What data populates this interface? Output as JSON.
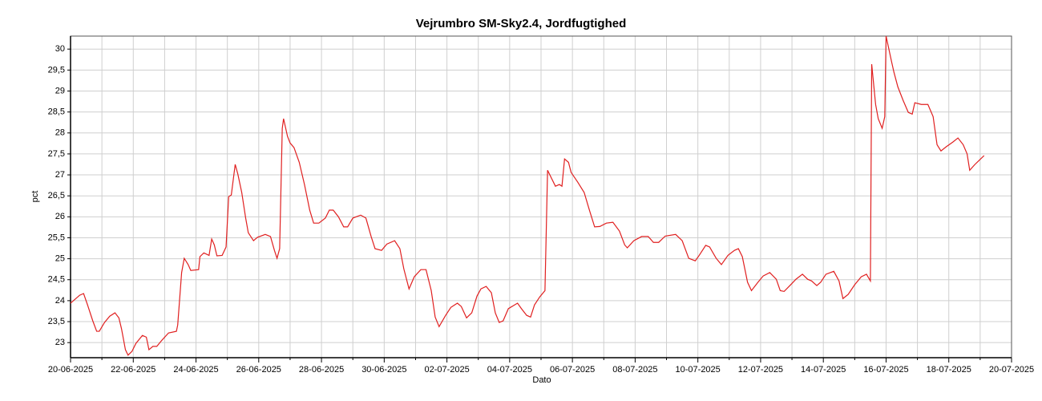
{
  "chart_data": {
    "type": "line",
    "title": "Vejrumbro SM-Sky2.4, Jordfugtighed",
    "x_label": "Dato",
    "y_label": "pct",
    "color": "#e02020",
    "grid": true,
    "minor_grid": true,
    "xlim": [
      "2025-06-20T00:00",
      "2025-07-20T00:00"
    ],
    "ylim": [
      22.64,
      30.31
    ],
    "xticks": [
      {
        "value": "2025-06-20T00:00",
        "label": "20-06-2025"
      },
      {
        "value": "2025-06-22T00:00",
        "label": "22-06-2025"
      },
      {
        "value": "2025-06-24T00:00",
        "label": "24-06-2025"
      },
      {
        "value": "2025-06-26T00:00",
        "label": "26-06-2025"
      },
      {
        "value": "2025-06-28T00:00",
        "label": "28-06-2025"
      },
      {
        "value": "2025-06-30T00:00",
        "label": "30-06-2025"
      },
      {
        "value": "2025-07-02T00:00",
        "label": "02-07-2025"
      },
      {
        "value": "2025-07-04T00:00",
        "label": "04-07-2025"
      },
      {
        "value": "2025-07-06T00:00",
        "label": "06-07-2025"
      },
      {
        "value": "2025-07-08T00:00",
        "label": "08-07-2025"
      },
      {
        "value": "2025-07-10T00:00",
        "label": "10-07-2025"
      },
      {
        "value": "2025-07-12T00:00",
        "label": "12-07-2025"
      },
      {
        "value": "2025-07-14T00:00",
        "label": "14-07-2025"
      },
      {
        "value": "2025-07-16T00:00",
        "label": "16-07-2025"
      },
      {
        "value": "2025-07-18T00:00",
        "label": "18-07-2025"
      },
      {
        "value": "2025-07-20T00:00",
        "label": "20-07-2025"
      }
    ],
    "yticks": [
      23,
      {
        "value": 23.5,
        "label": "23,5"
      },
      24,
      {
        "value": 24.5,
        "label": "24,5"
      },
      25,
      {
        "value": 25.5,
        "label": "25,5"
      },
      26,
      {
        "value": 26.5,
        "label": "26,5"
      },
      27,
      {
        "value": 27.5,
        "label": "27,5"
      },
      28,
      {
        "value": 28.5,
        "label": "28,5"
      },
      29,
      {
        "value": 29.5,
        "label": "29,5"
      },
      30
    ],
    "x": [
      "2025-06-20T00:00",
      "2025-06-20T07:00",
      "2025-06-20T10:00",
      "2025-06-20T13:00",
      "2025-06-20T17:00",
      "2025-06-20T20:00",
      "2025-06-20T22:00",
      "2025-06-21T02:00",
      "2025-06-21T06:00",
      "2025-06-21T10:00",
      "2025-06-21T13:00",
      "2025-06-21T15:00",
      "2025-06-21T18:00",
      "2025-06-21T20:00",
      "2025-06-21T23:00",
      "2025-06-22T02:00",
      "2025-06-22T07:00",
      "2025-06-22T10:00",
      "2025-06-22T12:00",
      "2025-06-22T15:00",
      "2025-06-22T18:00",
      "2025-06-22T22:00",
      "2025-06-23T03:00",
      "2025-06-23T09:00",
      "2025-06-23T10:00",
      "2025-06-23T13:00",
      "2025-06-23T15:00",
      "2025-06-23T18:00",
      "2025-06-23T20:00",
      "2025-06-24T02:00",
      "2025-06-24T03:00",
      "2025-06-24T06:00",
      "2025-06-24T10:00",
      "2025-06-24T12:00",
      "2025-06-24T14:00",
      "2025-06-24T16:00",
      "2025-06-24T20:00",
      "2025-06-24T23:00",
      "2025-06-25T01:00",
      "2025-06-25T03:00",
      "2025-06-25T06:00",
      "2025-06-25T08:00",
      "2025-06-25T11:00",
      "2025-06-25T14:00",
      "2025-06-25T16:00",
      "2025-06-25T20:00",
      "2025-06-25T23:00",
      "2025-06-26T05:00",
      "2025-06-26T09:00",
      "2025-06-26T12:00",
      "2025-06-26T14:00",
      "2025-06-26T16:00",
      "2025-06-26T18:00",
      "2025-06-26T19:00",
      "2025-06-26T22:00",
      "2025-06-27T00:00",
      "2025-06-27T03:00",
      "2025-06-27T07:00",
      "2025-06-27T11:00",
      "2025-06-27T15:00",
      "2025-06-27T18:00",
      "2025-06-27T22:00",
      "2025-06-28T03:00",
      "2025-06-28T06:00",
      "2025-06-28T09:00",
      "2025-06-28T13:00",
      "2025-06-28T17:00",
      "2025-06-28T20:00",
      "2025-06-29T00:00",
      "2025-06-29T06:00",
      "2025-06-29T10:00",
      "2025-06-29T14:00",
      "2025-06-29T17:00",
      "2025-06-29T22:00",
      "2025-06-30T02:00",
      "2025-06-30T08:00",
      "2025-06-30T12:00",
      "2025-06-30T15:00",
      "2025-06-30T19:00",
      "2025-06-30T23:00",
      "2025-07-01T04:00",
      "2025-07-01T08:00",
      "2025-07-01T12:00",
      "2025-07-01T15:00",
      "2025-07-01T18:00",
      "2025-07-01T23:00",
      "2025-07-02T03:00",
      "2025-07-02T08:00",
      "2025-07-02T11:00",
      "2025-07-02T15:00",
      "2025-07-02T19:00",
      "2025-07-02T23:00",
      "2025-07-03T02:00",
      "2025-07-03T06:00",
      "2025-07-03T10:00",
      "2025-07-03T13:00",
      "2025-07-03T16:00",
      "2025-07-03T19:00",
      "2025-07-03T23:00",
      "2025-07-04T06:00",
      "2025-07-04T09:00",
      "2025-07-04T13:00",
      "2025-07-04T16:00",
      "2025-07-04T19:00",
      "2025-07-04T23:00",
      "2025-07-05T03:00",
      "2025-07-05T05:00",
      "2025-07-05T08:00",
      "2025-07-05T11:00",
      "2025-07-05T14:00",
      "2025-07-05T16:00",
      "2025-07-05T18:00",
      "2025-07-05T21:00",
      "2025-07-05T23:00",
      "2025-07-06T04:00",
      "2025-07-06T09:00",
      "2025-07-06T13:00",
      "2025-07-06T17:00",
      "2025-07-06T21:00",
      "2025-07-07T02:00",
      "2025-07-07T07:00",
      "2025-07-07T12:00",
      "2025-07-07T16:00",
      "2025-07-07T18:00",
      "2025-07-07T23:00",
      "2025-07-08T05:00",
      "2025-07-08T10:00",
      "2025-07-08T14:00",
      "2025-07-08T18:00",
      "2025-07-08T23:00",
      "2025-07-09T07:00",
      "2025-07-09T12:00",
      "2025-07-09T17:00",
      "2025-07-09T22:00",
      "2025-07-10T01:00",
      "2025-07-10T06:00",
      "2025-07-10T09:00",
      "2025-07-10T14:00",
      "2025-07-10T18:00",
      "2025-07-10T23:00",
      "2025-07-11T04:00",
      "2025-07-11T07:00",
      "2025-07-11T10:00",
      "2025-07-11T14:00",
      "2025-07-11T17:00",
      "2025-07-11T22:00",
      "2025-07-12T02:00",
      "2025-07-12T07:00",
      "2025-07-12T12:00",
      "2025-07-12T15:00",
      "2025-07-12T18:00",
      "2025-07-12T23:00",
      "2025-07-13T03:00",
      "2025-07-13T08:00",
      "2025-07-13T12:00",
      "2025-07-13T15:00",
      "2025-07-13T19:00",
      "2025-07-13T22:00",
      "2025-07-14T02:00",
      "2025-07-14T08:00",
      "2025-07-14T12:00",
      "2025-07-14T15:00",
      "2025-07-14T19:00",
      "2025-07-15T00:00",
      "2025-07-15T05:00",
      "2025-07-15T09:00",
      "2025-07-15T12:00",
      "2025-07-15T13:00",
      "2025-07-15T16:00",
      "2025-07-15T18:00",
      "2025-07-15T21:00",
      "2025-07-15T23:00",
      "2025-07-16T00:00",
      "2025-07-16T02:00",
      "2025-07-16T04:00",
      "2025-07-16T06:00",
      "2025-07-16T09:00",
      "2025-07-16T13:00",
      "2025-07-16T17:00",
      "2025-07-16T20:00",
      "2025-07-16T22:00",
      "2025-07-17T03:00",
      "2025-07-17T08:00",
      "2025-07-17T12:00",
      "2025-07-17T15:00",
      "2025-07-17T18:00",
      "2025-07-17T22:00",
      "2025-07-18T03:00",
      "2025-07-18T07:00",
      "2025-07-18T11:00",
      "2025-07-18T14:00",
      "2025-07-18T16:00",
      "2025-07-18T20:00",
      "2025-07-18T23:00",
      "2025-07-19T03:00"
    ],
    "values": [
      23.94,
      24.13,
      24.17,
      23.9,
      23.52,
      23.27,
      23.27,
      23.48,
      23.63,
      23.71,
      23.59,
      23.33,
      22.83,
      22.7,
      22.79,
      22.98,
      23.17,
      23.13,
      22.83,
      22.91,
      22.91,
      23.06,
      23.23,
      23.27,
      23.42,
      24.67,
      25.01,
      24.86,
      24.72,
      24.74,
      25.05,
      25.14,
      25.08,
      25.47,
      25.33,
      25.07,
      25.08,
      25.28,
      26.48,
      26.52,
      27.25,
      27.02,
      26.58,
      25.97,
      25.62,
      25.43,
      25.51,
      25.58,
      25.53,
      25.2,
      25.01,
      25.24,
      28.11,
      28.34,
      27.92,
      27.76,
      27.65,
      27.3,
      26.77,
      26.16,
      25.85,
      25.85,
      25.97,
      26.16,
      26.16,
      26.0,
      25.76,
      25.76,
      25.97,
      26.04,
      25.97,
      25.53,
      25.24,
      25.2,
      25.35,
      25.43,
      25.24,
      24.76,
      24.28,
      24.57,
      24.74,
      24.74,
      24.24,
      23.61,
      23.38,
      23.65,
      23.84,
      23.94,
      23.86,
      23.59,
      23.71,
      24.11,
      24.28,
      24.34,
      24.19,
      23.71,
      23.48,
      23.52,
      23.81,
      23.94,
      23.81,
      23.65,
      23.61,
      23.9,
      24.09,
      24.24,
      27.11,
      26.92,
      26.73,
      26.77,
      26.73,
      27.38,
      27.3,
      27.06,
      26.83,
      26.58,
      26.16,
      25.76,
      25.77,
      25.85,
      25.87,
      25.66,
      25.33,
      25.26,
      25.43,
      25.53,
      25.53,
      25.39,
      25.39,
      25.54,
      25.58,
      25.43,
      25.01,
      24.95,
      25.08,
      25.32,
      25.28,
      25.01,
      24.86,
      25.08,
      25.2,
      25.24,
      25.05,
      24.44,
      24.24,
      24.44,
      24.59,
      24.67,
      24.51,
      24.24,
      24.22,
      24.38,
      24.51,
      24.63,
      24.51,
      24.47,
      24.36,
      24.44,
      24.63,
      24.7,
      24.47,
      24.05,
      24.15,
      24.38,
      24.57,
      24.63,
      24.47,
      29.64,
      28.68,
      28.34,
      28.11,
      28.39,
      30.31,
      30.02,
      29.73,
      29.45,
      29.1,
      28.78,
      28.49,
      28.45,
      28.72,
      28.68,
      28.68,
      28.39,
      27.72,
      27.57,
      27.67,
      27.78,
      27.88,
      27.72,
      27.5,
      27.11,
      27.25,
      27.34,
      27.46
    ]
  }
}
